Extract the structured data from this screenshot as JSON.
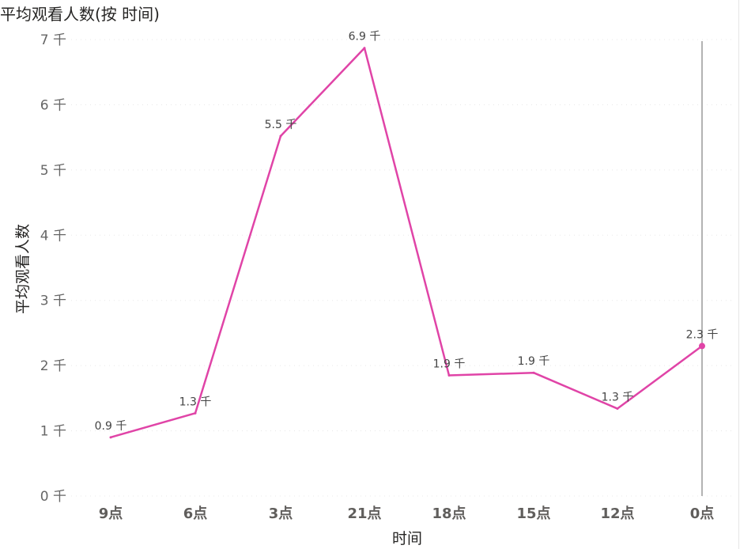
{
  "chart_data": {
    "type": "line",
    "title": "平均观看人数(按 时间)",
    "xlabel": "时间",
    "ylabel": "平均观看人数",
    "categories": [
      "9点",
      "6点",
      "3点",
      "21点",
      "18点",
      "15点",
      "12点",
      "0点"
    ],
    "series": [
      {
        "values": [
          0.9,
          1.27,
          5.52,
          6.87,
          1.85,
          1.89,
          1.34,
          2.3
        ],
        "labels": [
          "0.9 千",
          "1.3 千",
          "5.5 千",
          "6.9 千",
          "1.9 千",
          "1.9 千",
          "1.3 千",
          "2.3 千"
        ],
        "color": "#e044a7"
      }
    ],
    "y_ticks": [
      "0 千",
      "1 千",
      "2 千",
      "3 千",
      "4 千",
      "5 千",
      "6 千",
      "7 千"
    ],
    "ylim": [
      0,
      7
    ],
    "unit": "千",
    "grid": true,
    "legend": "none"
  }
}
